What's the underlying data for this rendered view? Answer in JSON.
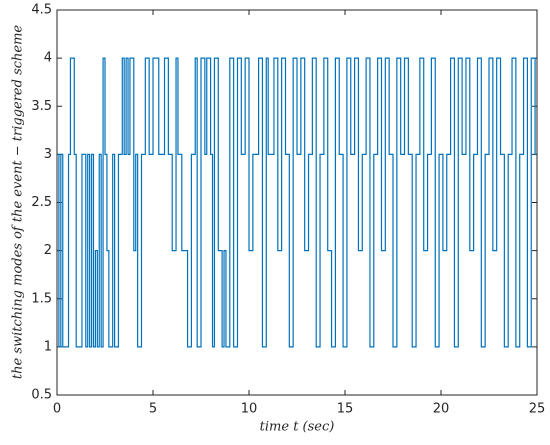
{
  "chart_data": {
    "type": "line",
    "step": "post",
    "color": "#0072bd",
    "xlabel": "time t (sec)",
    "ylabel": "the switching modes of the event − triggered scheme",
    "xlim": [
      0,
      25
    ],
    "xticks": [
      0,
      5,
      10,
      15,
      20,
      25
    ],
    "ylim": [
      0.5,
      4.5
    ],
    "yticks": [
      0.5,
      1,
      1.5,
      2,
      2.5,
      3,
      3.5,
      4,
      4.5
    ],
    "x": [
      0,
      0.1,
      0.2,
      0.3,
      0.6,
      0.7,
      0.9,
      1.0,
      1.3,
      1.5,
      1.6,
      1.7,
      1.8,
      1.9,
      2.0,
      2.1,
      2.2,
      2.3,
      2.4,
      2.5,
      2.6,
      2.7,
      2.9,
      3.0,
      3.2,
      3.4,
      3.5,
      3.6,
      3.7,
      3.8,
      4.0,
      4.1,
      4.2,
      4.4,
      4.6,
      4.8,
      5.0,
      5.3,
      5.6,
      5.8,
      6.0,
      6.2,
      6.3,
      6.5,
      6.8,
      7.0,
      7.2,
      7.3,
      7.5,
      7.7,
      7.8,
      8.0,
      8.1,
      8.2,
      8.4,
      8.6,
      8.7,
      8.8,
      9.0,
      9.2,
      9.4,
      9.6,
      9.8,
      10.0,
      10.2,
      10.5,
      10.7,
      10.9,
      11.0,
      11.3,
      11.5,
      11.7,
      11.9,
      12.1,
      12.3,
      12.5,
      12.7,
      12.9,
      13.1,
      13.3,
      13.5,
      13.7,
      13.9,
      14.1,
      14.3,
      14.5,
      14.7,
      14.9,
      15.1,
      15.3,
      15.5,
      15.7,
      15.9,
      16.1,
      16.3,
      16.5,
      16.7,
      16.9,
      17.1,
      17.3,
      17.5,
      17.7,
      17.9,
      18.1,
      18.3,
      18.5,
      18.7,
      18.9,
      19.1,
      19.3,
      19.5,
      19.7,
      19.9,
      20.1,
      20.3,
      20.5,
      20.7,
      20.9,
      21.1,
      21.3,
      21.5,
      21.7,
      21.9,
      22.1,
      22.3,
      22.5,
      22.7,
      22.9,
      23.1,
      23.3,
      23.5,
      23.7,
      23.9,
      24.1,
      24.3,
      24.5,
      24.7,
      24.9,
      25
    ],
    "values": [
      3,
      1,
      3,
      1,
      3,
      4,
      3,
      1,
      3,
      1,
      3,
      1,
      3,
      1,
      2,
      1,
      3,
      1,
      4,
      3,
      2,
      1,
      3,
      1,
      3,
      4,
      3,
      4,
      3,
      4,
      2,
      3,
      1,
      3,
      4,
      3,
      4,
      3,
      4,
      3,
      2,
      4,
      3,
      2,
      1,
      3,
      4,
      1,
      4,
      3,
      4,
      3,
      1,
      4,
      2,
      1,
      2,
      1,
      4,
      1,
      4,
      3,
      4,
      2,
      3,
      4,
      1,
      4,
      3,
      4,
      2,
      4,
      3,
      1,
      4,
      3,
      4,
      2,
      3,
      4,
      1,
      3,
      4,
      2,
      1,
      4,
      3,
      1,
      4,
      3,
      4,
      2,
      3,
      4,
      1,
      3,
      4,
      2,
      4,
      3,
      1,
      4,
      3,
      4,
      3,
      1,
      3,
      4,
      2,
      3,
      4,
      1,
      3,
      2,
      3,
      4,
      1,
      4,
      3,
      4,
      2,
      3,
      4,
      1,
      3,
      4,
      2,
      4,
      3,
      1,
      3,
      4,
      1,
      3,
      4,
      1,
      4,
      3,
      3
    ]
  }
}
